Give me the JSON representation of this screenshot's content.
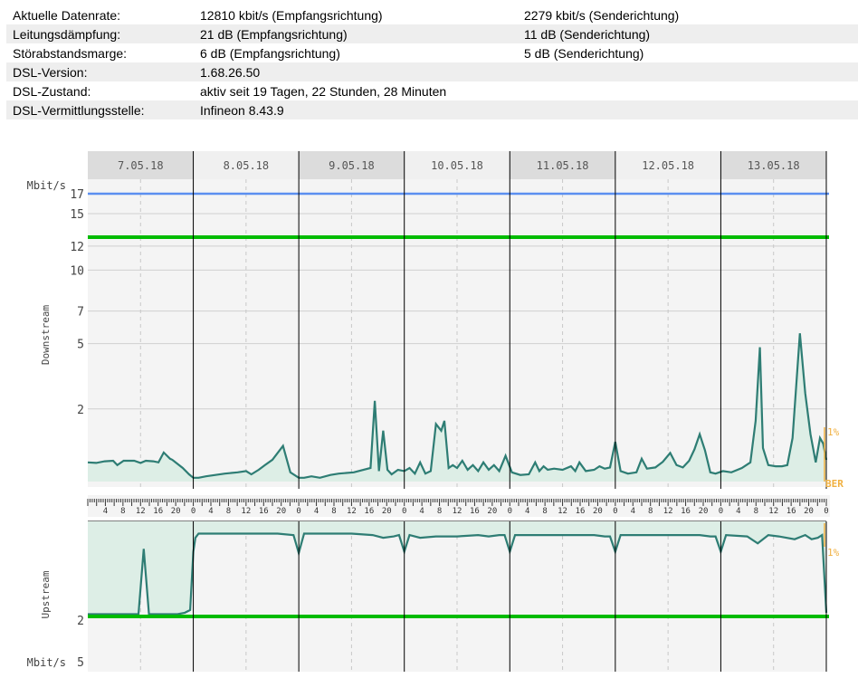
{
  "stats": [
    {
      "label": "Aktuelle Datenrate:",
      "down": "12810 kbit/s (Empfangsrichtung)",
      "up": "2279 kbit/s (Senderichtung)"
    },
    {
      "label": "Leitungsdämpfung:",
      "down": "21 dB (Empfangsrichtung)",
      "up": "11 dB (Senderichtung)"
    },
    {
      "label": "Störabstandsmarge:",
      "down": "6 dB (Empfangsrichtung)",
      "up": "5 dB (Senderichtung)"
    },
    {
      "label": "DSL-Version:",
      "down": "1.68.26.50",
      "up": ""
    },
    {
      "label": "DSL-Zustand:",
      "down": "aktiv seit 19 Tagen, 22 Stunden, 28 Minuten",
      "up": ""
    },
    {
      "label": "DSL-Vermittlungsstelle:",
      "down": "Infineon 8.43.9",
      "up": ""
    }
  ],
  "colors": {
    "line": "#2e7d74",
    "fill": "#ddeee6",
    "sync": "#00bb00",
    "attainable": "#5b8ff0",
    "ber": "#f0b040",
    "grid_bg": "#f4f4f4",
    "header_bg": "#dcdcdc"
  },
  "chart_data": [
    {
      "type": "area",
      "title": "",
      "ylabel": "Downstream",
      "unit": "Mbit/s",
      "days": [
        "7.05.18",
        "8.05.18",
        "9.05.18",
        "10.05.18",
        "11.05.18",
        "12.05.18",
        "13.05.18"
      ],
      "yticks": [
        17,
        15,
        12,
        10,
        7,
        5,
        2
      ],
      "hour_ticks": [
        "4",
        "8",
        "12",
        "16",
        "20",
        "0"
      ],
      "ber_labels": [
        "1%",
        "BER"
      ],
      "attainable_line": 17,
      "sync_line": 12.8,
      "x_unit": "days since 7.05.18 00:00",
      "series": [
        {
          "x": [
            0,
            0.08,
            0.16,
            0.24,
            0.28,
            0.34,
            0.44,
            0.5,
            0.55,
            0.62,
            0.67,
            0.72,
            0.78,
            0.8,
            0.9,
            0.96,
            1.0,
            1.05,
            1.12,
            1.3,
            1.42,
            1.5,
            1.55,
            1.62,
            1.68,
            1.75,
            1.85,
            1.92,
            2.0,
            2.05,
            2.12,
            2.2,
            2.3,
            2.38,
            2.52,
            2.68,
            2.72,
            2.76,
            2.8,
            2.84,
            2.88,
            2.94,
            3.0,
            3.05,
            3.1,
            3.15,
            3.2,
            3.25,
            3.3,
            3.35,
            3.38,
            3.42,
            3.46,
            3.5,
            3.55,
            3.6,
            3.65,
            3.7,
            3.75,
            3.8,
            3.85,
            3.9,
            3.96,
            4.02,
            4.1,
            4.18,
            4.24,
            4.28,
            4.32,
            4.36,
            4.42,
            4.5,
            4.58,
            4.62,
            4.66,
            4.72,
            4.8,
            4.85,
            4.9,
            4.95,
            5.0,
            5.05,
            5.12,
            5.2,
            5.25,
            5.3,
            5.38,
            5.45,
            5.52,
            5.58,
            5.64,
            5.7,
            5.75,
            5.8,
            5.85,
            5.9,
            5.95,
            6.02,
            6.1,
            6.2,
            6.28,
            6.33,
            6.37,
            6.4,
            6.45,
            6.52,
            6.58,
            6.63,
            6.68,
            6.75,
            6.8,
            6.85,
            6.9,
            6.94,
            6.97,
            7.0
          ],
          "values": [
            0.55,
            0.54,
            0.57,
            0.58,
            0.5,
            0.58,
            0.58,
            0.54,
            0.58,
            0.57,
            0.55,
            0.75,
            0.62,
            0.6,
            0.45,
            0.35,
            0.3,
            0.3,
            0.32,
            0.36,
            0.38,
            0.4,
            0.35,
            0.42,
            0.5,
            0.6,
            0.9,
            0.38,
            0.3,
            0.3,
            0.32,
            0.3,
            0.34,
            0.36,
            0.38,
            0.45,
            2.3,
            0.4,
            1.3,
            0.42,
            0.35,
            0.42,
            0.4,
            0.45,
            0.36,
            0.55,
            0.36,
            0.4,
            1.5,
            1.3,
            1.6,
            0.45,
            0.5,
            0.45,
            0.58,
            0.42,
            0.5,
            0.4,
            0.55,
            0.42,
            0.5,
            0.4,
            0.68,
            0.38,
            0.34,
            0.35,
            0.55,
            0.4,
            0.48,
            0.42,
            0.44,
            0.42,
            0.48,
            0.4,
            0.55,
            0.4,
            0.42,
            0.48,
            0.44,
            0.46,
            1.0,
            0.4,
            0.36,
            0.38,
            0.62,
            0.44,
            0.46,
            0.56,
            0.74,
            0.5,
            0.46,
            0.58,
            0.82,
            1.2,
            0.8,
            0.38,
            0.36,
            0.4,
            0.38,
            0.45,
            0.55,
            1.6,
            4.8,
            0.85,
            0.5,
            0.48,
            0.48,
            0.5,
            1.1,
            5.6,
            2.6,
            1.2,
            0.55,
            1.1,
            0.96,
            0.6
          ]
        }
      ]
    },
    {
      "type": "area",
      "title": "",
      "ylabel": "Upstream",
      "unit": "Mbit/s",
      "yticks": [
        2,
        5
      ],
      "ber_labels": [
        "1%"
      ],
      "sync_line": 2.279,
      "x_unit": "days since 7.05.18 00:00",
      "series": [
        {
          "x": [
            0,
            0.2,
            0.4,
            0.48,
            0.53,
            0.58,
            0.6,
            0.7,
            0.85,
            0.92,
            0.97,
            1.0,
            1.02,
            1.05,
            1.2,
            1.5,
            1.8,
            1.95,
            2.0,
            2.05,
            2.2,
            2.5,
            2.7,
            2.8,
            2.9,
            2.95,
            3.0,
            3.05,
            3.15,
            3.3,
            3.5,
            3.7,
            3.8,
            3.9,
            3.95,
            4.0,
            4.05,
            4.2,
            4.5,
            4.7,
            4.8,
            4.9,
            4.95,
            5.0,
            5.05,
            5.3,
            5.5,
            5.7,
            5.8,
            5.9,
            5.95,
            6.0,
            6.05,
            6.25,
            6.35,
            6.45,
            6.55,
            6.7,
            6.8,
            6.86,
            6.92,
            6.96,
            7.0
          ],
          "values": [
            2.05,
            2.05,
            2.05,
            2.05,
            4.4,
            2.05,
            2.05,
            2.05,
            2.05,
            2.1,
            2.2,
            4.3,
            4.8,
            4.95,
            4.95,
            4.95,
            4.95,
            4.9,
            4.25,
            4.95,
            4.95,
            4.95,
            4.9,
            4.8,
            4.85,
            4.9,
            4.3,
            4.9,
            4.8,
            4.85,
            4.85,
            4.9,
            4.85,
            4.9,
            4.9,
            4.3,
            4.9,
            4.9,
            4.9,
            4.9,
            4.9,
            4.85,
            4.85,
            4.3,
            4.9,
            4.9,
            4.9,
            4.9,
            4.9,
            4.85,
            4.85,
            4.3,
            4.9,
            4.85,
            4.6,
            4.9,
            4.85,
            4.75,
            4.9,
            4.75,
            4.8,
            4.9,
            2.1
          ]
        }
      ]
    }
  ]
}
